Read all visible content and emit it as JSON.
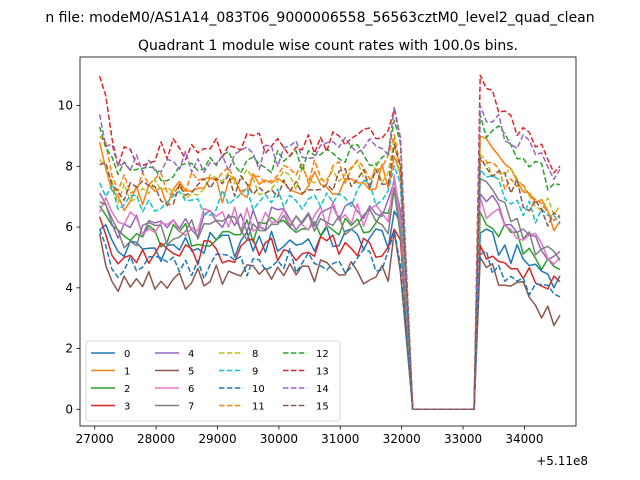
{
  "figure": {
    "suptitle": "n file: modeM0/AS1A14_083T06_9000006558_56563cztM0_level2_quad_clean"
  },
  "chart_data": {
    "type": "line",
    "title": "Quadrant 1 module wise count rates with 100.0s bins.",
    "xlabel": "",
    "ylabel": "",
    "x_offset_label": "+5.11e8",
    "xlim": [
      26760,
      34840
    ],
    "ylim": [
      -0.55,
      11.6
    ],
    "xticks": [
      27000,
      28000,
      29000,
      30000,
      31000,
      32000,
      33000,
      34000
    ],
    "yticks": [
      0,
      2,
      4,
      6,
      8,
      10
    ],
    "xtick_labels": [
      "27000",
      "28000",
      "29000",
      "30000",
      "31000",
      "32000",
      "33000",
      "34000"
    ],
    "ytick_labels": [
      "0",
      "2",
      "4",
      "6",
      "8",
      "10"
    ],
    "grid": false,
    "legend_position": "lower-left",
    "legend_columns": 4,
    "x_segments": [
      {
        "start": 27080,
        "end": 31980,
        "step": 100
      },
      {
        "start": 32180,
        "end": 33080,
        "step": 100
      },
      {
        "start": 33180,
        "end": 34580,
        "step": 100
      }
    ],
    "series": [
      {
        "name": "0",
        "color": "#1f77b4",
        "dash": "solid",
        "level": 5.2,
        "start": 6.2,
        "rise": 0.5,
        "recover": 5.8,
        "end": 4.4
      },
      {
        "name": "1",
        "color": "#ff7f0e",
        "dash": "solid",
        "level": 6.9,
        "start": 8.5,
        "rise": 0.8,
        "recover": 9.0,
        "end": 6.2
      },
      {
        "name": "2",
        "color": "#2ca02c",
        "dash": "solid",
        "level": 5.6,
        "start": 6.4,
        "rise": 0.5,
        "recover": 6.5,
        "end": 4.6
      },
      {
        "name": "3",
        "color": "#d62728",
        "dash": "solid",
        "level": 5.0,
        "start": 6.0,
        "rise": 0.4,
        "recover": 5.4,
        "end": 4.2
      },
      {
        "name": "4",
        "color": "#9467bd",
        "dash": "solid",
        "level": 5.9,
        "start": 7.3,
        "rise": 0.6,
        "recover": 7.1,
        "end": 5.2
      },
      {
        "name": "5",
        "color": "#8c564b",
        "dash": "solid",
        "level": 4.2,
        "start": 5.4,
        "rise": 0.4,
        "recover": 5.0,
        "end": 3.1
      },
      {
        "name": "6",
        "color": "#e377c2",
        "dash": "solid",
        "level": 6.0,
        "start": 6.9,
        "rise": 0.5,
        "recover": 7.0,
        "end": 5.0
      },
      {
        "name": "7",
        "color": "#7f7f7f",
        "dash": "solid",
        "level": 5.7,
        "start": 6.7,
        "rise": 0.5,
        "recover": 7.6,
        "end": 4.9
      },
      {
        "name": "8",
        "color": "#bcbd22",
        "dash": "dashed",
        "level": 7.2,
        "start": 8.6,
        "rise": 0.6,
        "recover": 8.4,
        "end": 6.7
      },
      {
        "name": "9",
        "color": "#17becf",
        "dash": "dashed",
        "level": 6.6,
        "start": 7.8,
        "rise": 0.6,
        "recover": 7.9,
        "end": 6.1
      },
      {
        "name": "10",
        "color": "#1f77b4",
        "dash": "dashed",
        "level": 4.6,
        "start": 5.6,
        "rise": 0.4,
        "recover": 5.1,
        "end": 3.7
      },
      {
        "name": "11",
        "color": "#ff7f0e",
        "dash": "dashed",
        "level": 7.3,
        "start": 8.9,
        "rise": 0.7,
        "recover": 8.2,
        "end": 6.4
      },
      {
        "name": "12",
        "color": "#2ca02c",
        "dash": "dashed",
        "level": 7.7,
        "start": 9.4,
        "rise": 0.8,
        "recover": 9.7,
        "end": 7.4
      },
      {
        "name": "13",
        "color": "#d62728",
        "dash": "dashed",
        "level": 8.3,
        "start": 11.1,
        "rise": 0.7,
        "recover": 11.0,
        "end": 8.0
      },
      {
        "name": "14",
        "color": "#9467bd",
        "dash": "dashed",
        "level": 7.9,
        "start": 9.7,
        "rise": 0.8,
        "recover": 10.0,
        "end": 7.9
      },
      {
        "name": "15",
        "color": "#8c564b",
        "dash": "dashed",
        "level": 7.0,
        "start": 8.2,
        "rise": 0.6,
        "recover": 8.3,
        "end": 6.3
      }
    ]
  }
}
